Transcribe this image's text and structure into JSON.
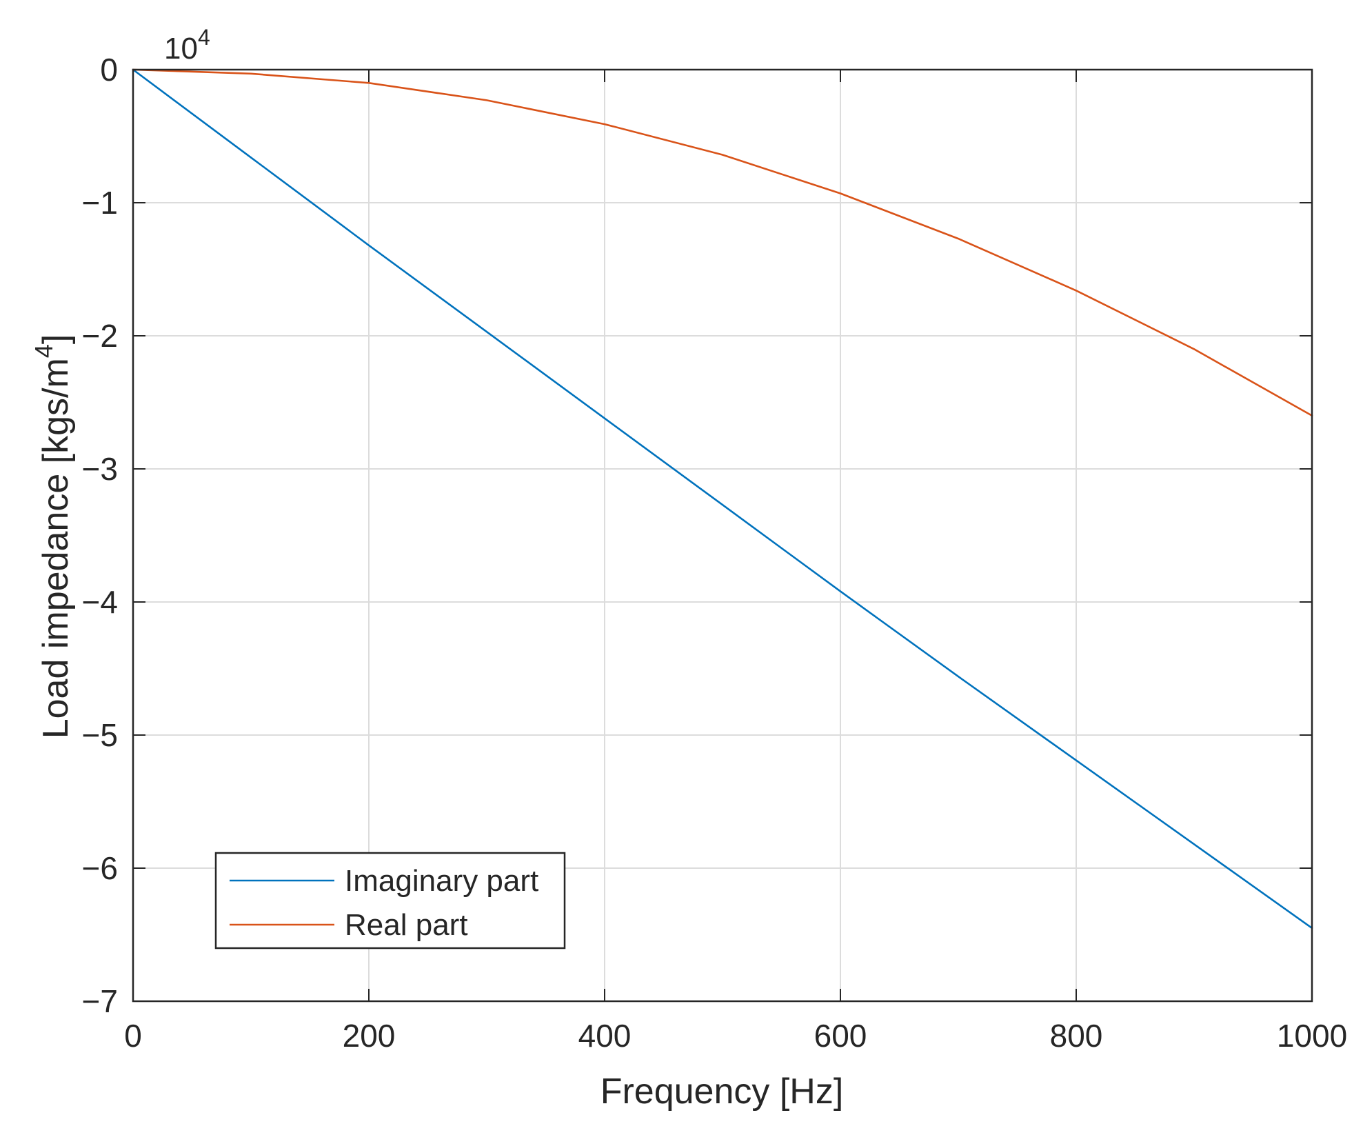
{
  "chart_data": {
    "type": "line",
    "title": "",
    "xlabel": "Frequency [Hz]",
    "ylabel_main": "Load impedance [kgs/m",
    "ylabel_sup": "4",
    "ylabel_close": "]",
    "y_exponent_base": "10",
    "y_exponent_power": "4",
    "xlim": [
      0,
      1000
    ],
    "ylim": [
      -7,
      0
    ],
    "xticks": [
      0,
      200,
      400,
      600,
      800,
      1000
    ],
    "xtick_labels": [
      "0",
      "200",
      "400",
      "600",
      "800",
      "1000"
    ],
    "yticks": [
      0,
      -1,
      -2,
      -3,
      -4,
      -5,
      -6,
      -7
    ],
    "ytick_labels": [
      "0",
      "−1",
      "−2",
      "−3",
      "−4",
      "−5",
      "−6",
      "−7"
    ],
    "grid": true,
    "legend_position": "bottom-left",
    "series": [
      {
        "name": "Imaginary part",
        "color": "#0072BD",
        "x": [
          0,
          100,
          200,
          300,
          400,
          500,
          600,
          700,
          800,
          900,
          1000
        ],
        "y": [
          0,
          -0.66,
          -1.32,
          -1.97,
          -2.62,
          -3.27,
          -3.92,
          -4.56,
          -5.19,
          -5.82,
          -6.45
        ]
      },
      {
        "name": "Real part",
        "color": "#D95319",
        "x": [
          0,
          100,
          200,
          300,
          400,
          500,
          600,
          700,
          800,
          900,
          1000
        ],
        "y": [
          0,
          -0.03,
          -0.1,
          -0.23,
          -0.41,
          -0.64,
          -0.93,
          -1.27,
          -1.66,
          -2.1,
          -2.6
        ]
      }
    ]
  }
}
